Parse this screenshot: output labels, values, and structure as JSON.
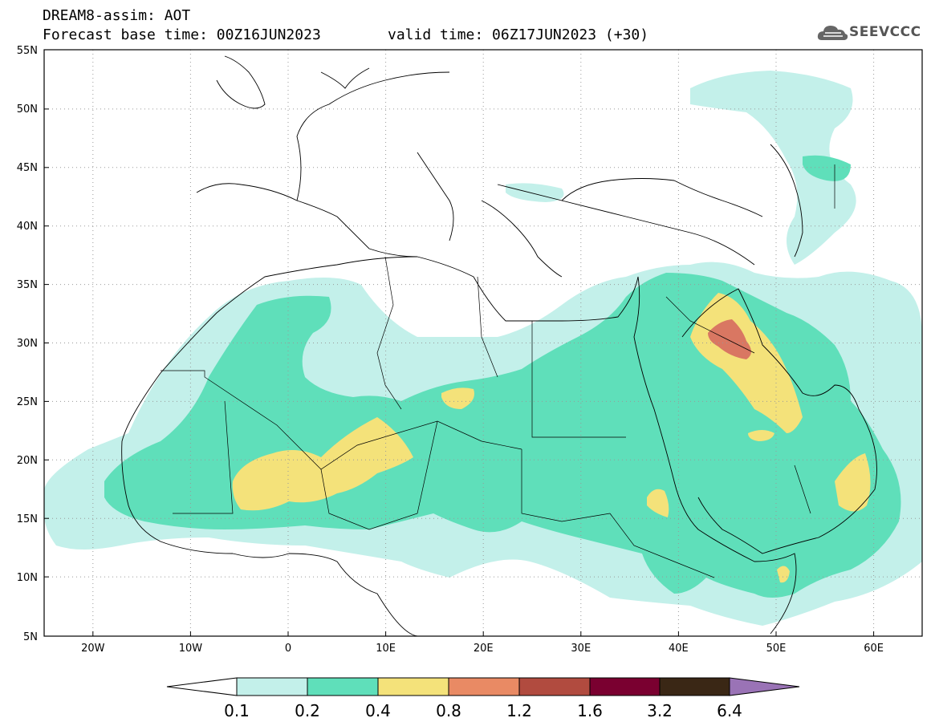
{
  "header": {
    "line1": "DREAM8-assim: AOT",
    "line2": "Forecast base time: 00Z16JUN2023",
    "valid": "valid time: 06Z17JUN2023 (+30)"
  },
  "logo": {
    "text": "SEEVCCC",
    "icon": "cloud-icon"
  },
  "axes": {
    "y_labels": [
      "55N",
      "50N",
      "45N",
      "40N",
      "35N",
      "30N",
      "25N",
      "20N",
      "15N",
      "10N",
      "5N"
    ],
    "x_labels": [
      "20W",
      "10W",
      "0",
      "10E",
      "20E",
      "30E",
      "40E",
      "50E",
      "60E"
    ],
    "lon_range": [
      -25,
      65
    ],
    "lat_range": [
      5,
      55
    ],
    "grid": "dotted"
  },
  "colorbar": {
    "ticks": [
      "0.1",
      "0.2",
      "0.4",
      "0.8",
      "1.2",
      "1.6",
      "3.2",
      "6.4"
    ],
    "colors": [
      "#c3f0ea",
      "#5fdfba",
      "#f4e27a",
      "#e98a64",
      "#b14b3f",
      "#7a0030",
      "#3a2715"
    ],
    "low_color": "#ffffff",
    "high_color": "#9a73b6"
  },
  "legend_colors": {
    "c1": "#c3f0ea",
    "c2": "#5fdfba",
    "c3": "#f4e27a",
    "c4": "#e98a64",
    "c5": "#d06a55"
  }
}
